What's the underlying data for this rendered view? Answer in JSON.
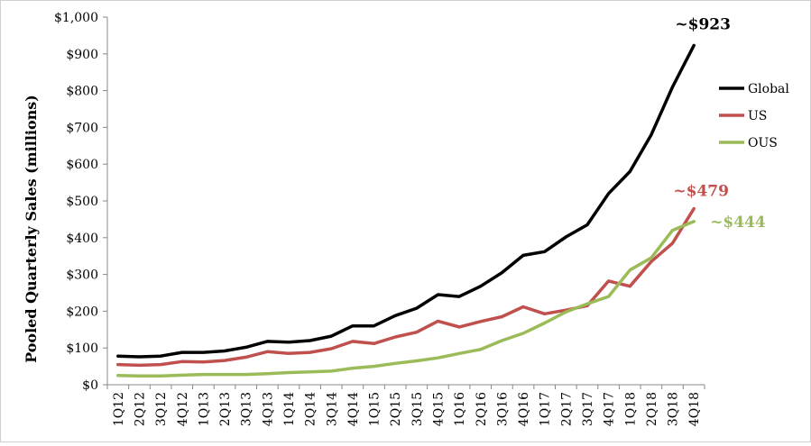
{
  "chart_data": {
    "type": "line",
    "title": "",
    "xlabel": "",
    "ylabel": "Pooled Quarterly Sales (millions)",
    "ylim": [
      0,
      1000
    ],
    "yticks": [
      0,
      100,
      200,
      300,
      400,
      500,
      600,
      700,
      800,
      900,
      1000
    ],
    "ytick_labels": [
      "$0",
      "$100",
      "$200",
      "$300",
      "$400",
      "$500",
      "$600",
      "$700",
      "$800",
      "$900",
      "$1,000"
    ],
    "grid": false,
    "legend_position": "right",
    "categories": [
      "1Q12",
      "2Q12",
      "3Q12",
      "4Q12",
      "1Q13",
      "2Q13",
      "3Q13",
      "4Q13",
      "1Q14",
      "2Q14",
      "3Q14",
      "4Q14",
      "1Q15",
      "2Q15",
      "3Q15",
      "4Q15",
      "1Q16",
      "2Q16",
      "3Q16",
      "4Q16",
      "1Q17",
      "2Q17",
      "3Q17",
      "4Q17",
      "1Q18",
      "2Q18",
      "3Q18",
      "4Q18"
    ],
    "series": [
      {
        "name": "Global",
        "color": "#000000",
        "values": [
          78,
          76,
          78,
          88,
          88,
          92,
          102,
          118,
          116,
          120,
          132,
          160,
          160,
          188,
          208,
          245,
          240,
          268,
          305,
          352,
          362,
          402,
          435,
          520,
          580,
          680,
          810,
          923
        ]
      },
      {
        "name": "US",
        "color": "#c0504d",
        "values": [
          55,
          53,
          55,
          63,
          62,
          66,
          75,
          90,
          85,
          88,
          98,
          118,
          112,
          130,
          143,
          173,
          157,
          172,
          185,
          212,
          193,
          203,
          215,
          282,
          268,
          335,
          385,
          479
        ]
      },
      {
        "name": "OUS",
        "color": "#9bbb59",
        "values": [
          25,
          24,
          24,
          26,
          28,
          28,
          28,
          30,
          33,
          35,
          37,
          45,
          50,
          58,
          65,
          73,
          85,
          96,
          120,
          140,
          168,
          198,
          220,
          240,
          312,
          345,
          420,
          444
        ]
      }
    ],
    "annotations": [
      {
        "series": "Global",
        "text": "~$923",
        "color": "#000000"
      },
      {
        "series": "US",
        "text": "~$479",
        "color": "#c0504d"
      },
      {
        "series": "OUS",
        "text": "~$444",
        "color": "#9bbb59"
      }
    ]
  }
}
